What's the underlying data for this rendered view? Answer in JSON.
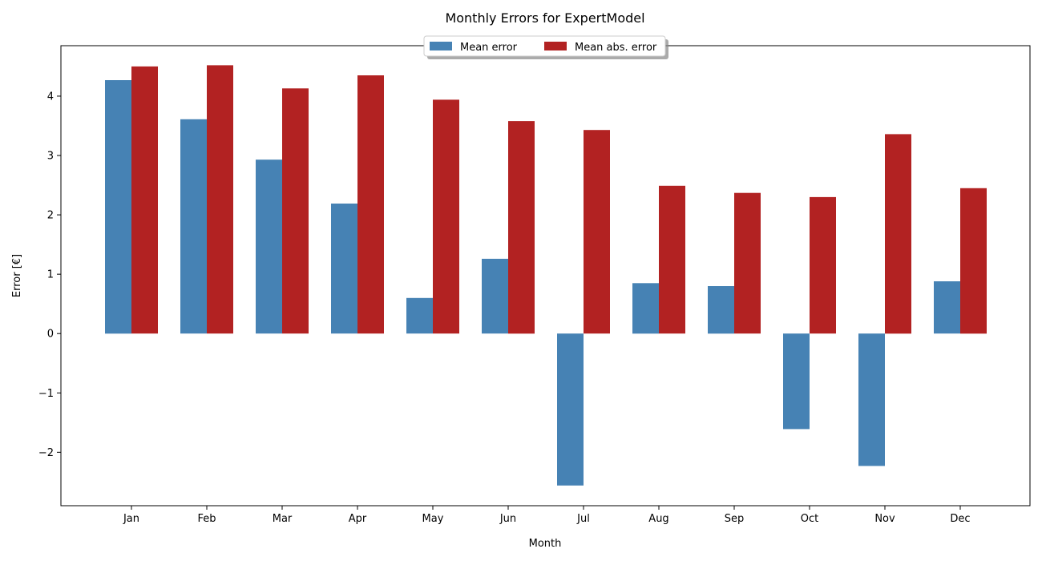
{
  "chart_data": {
    "type": "bar",
    "title": "Monthly Errors for ExpertModel",
    "xlabel": "Month",
    "ylabel": "Error [€]",
    "categories": [
      "Jan",
      "Feb",
      "Mar",
      "Apr",
      "May",
      "Jun",
      "Jul",
      "Aug",
      "Sep",
      "Oct",
      "Nov",
      "Dec"
    ],
    "series": [
      {
        "name": "Mean error",
        "color": "#4682B4",
        "values": [
          4.27,
          3.61,
          2.93,
          2.19,
          0.6,
          1.26,
          -2.56,
          0.85,
          0.8,
          -1.61,
          -2.23,
          0.88
        ]
      },
      {
        "name": "Mean abs. error",
        "color": "#B22222",
        "values": [
          4.5,
          4.52,
          4.13,
          4.35,
          3.94,
          3.58,
          3.43,
          2.49,
          2.37,
          2.3,
          3.36,
          2.45
        ]
      }
    ],
    "ylim": [
      -2.9,
      4.85
    ],
    "yticks": [
      -2,
      -1,
      0,
      1,
      2,
      3,
      4
    ],
    "ytick_labels": [
      "−2",
      "−1",
      "0",
      "1",
      "2",
      "3",
      "4"
    ],
    "grid": false,
    "legend": "upper-center, two columns, with shadow"
  }
}
